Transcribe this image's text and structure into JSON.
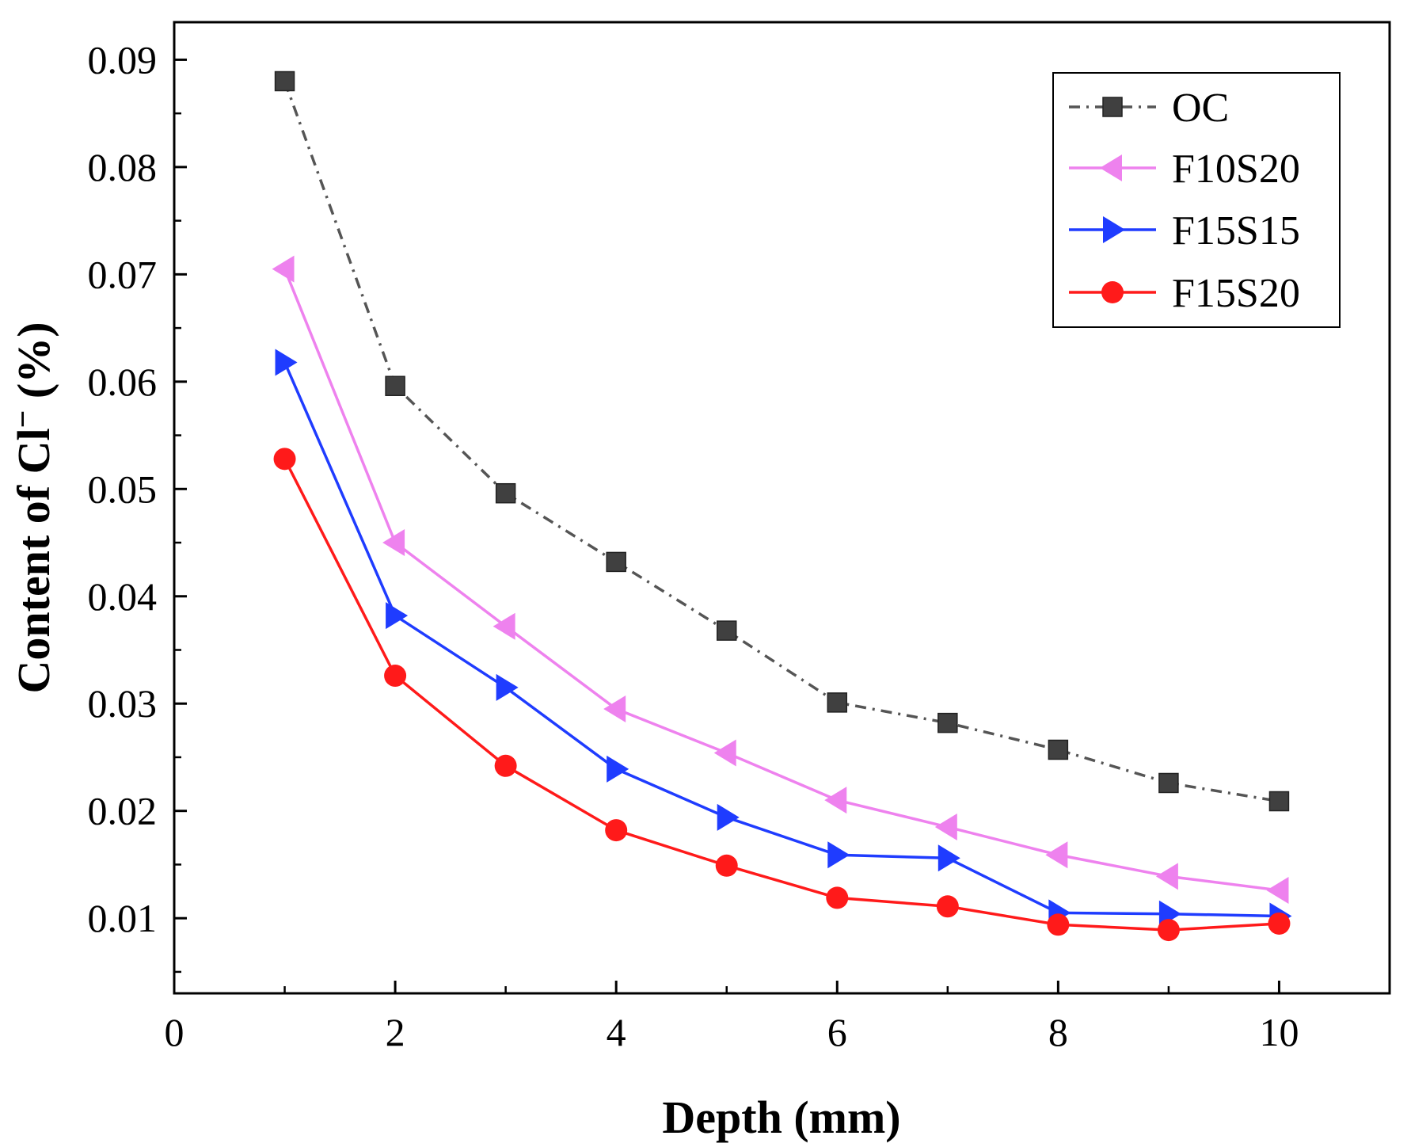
{
  "chart_data": {
    "type": "line",
    "title": "",
    "xlabel": "Depth (mm)",
    "ylabel_main": "Content of Cl",
    "ylabel_sup": "−",
    "ylabel_unit": " (%)",
    "xlim": [
      0,
      11
    ],
    "ylim": [
      0.003,
      0.0935
    ],
    "x_ticks": [
      0,
      2,
      4,
      6,
      8,
      10
    ],
    "x_tick_labels": [
      "0",
      "2",
      "4",
      "6",
      "8",
      "10"
    ],
    "x_minor_ticks": [
      1,
      3,
      5,
      7,
      9
    ],
    "y_ticks": [
      0.01,
      0.02,
      0.03,
      0.04,
      0.05,
      0.06,
      0.07,
      0.08,
      0.09
    ],
    "y_tick_labels": [
      "0.01",
      "0.02",
      "0.03",
      "0.04",
      "0.05",
      "0.06",
      "0.07",
      "0.08",
      "0.09"
    ],
    "y_minor_ticks": [
      0.005,
      0.015,
      0.025,
      0.035,
      0.045,
      0.055,
      0.065,
      0.075,
      0.085
    ],
    "grid": false,
    "legend_position": "top-right",
    "x": [
      1,
      2,
      3,
      4,
      5,
      6,
      7,
      8,
      9,
      10
    ],
    "series": [
      {
        "name": "OC",
        "color": "#404040",
        "line_color": "#555555",
        "dash": "dash-dot",
        "marker": "square",
        "values": [
          0.088,
          0.0596,
          0.0496,
          0.0432,
          0.0368,
          0.0301,
          0.0282,
          0.0257,
          0.0226,
          0.0209
        ]
      },
      {
        "name": "F10S20",
        "color": "#ee82ee",
        "line_color": "#ee82ee",
        "dash": "solid",
        "marker": "triangle-left",
        "values": [
          0.0705,
          0.045,
          0.0372,
          0.0295,
          0.0254,
          0.021,
          0.0185,
          0.0159,
          0.0139,
          0.0126
        ]
      },
      {
        "name": "F15S15",
        "color": "#1f3cff",
        "line_color": "#1f3cff",
        "dash": "solid",
        "marker": "triangle-right",
        "values": [
          0.0618,
          0.0382,
          0.0315,
          0.0239,
          0.0194,
          0.0159,
          0.0156,
          0.0105,
          0.0104,
          0.0102
        ]
      },
      {
        "name": "F15S20",
        "color": "#ff1a1a",
        "line_color": "#ff1a1a",
        "dash": "solid",
        "marker": "circle",
        "values": [
          0.0528,
          0.0326,
          0.0242,
          0.0182,
          0.0149,
          0.0119,
          0.0111,
          0.0094,
          0.0089,
          0.0095
        ]
      }
    ]
  }
}
